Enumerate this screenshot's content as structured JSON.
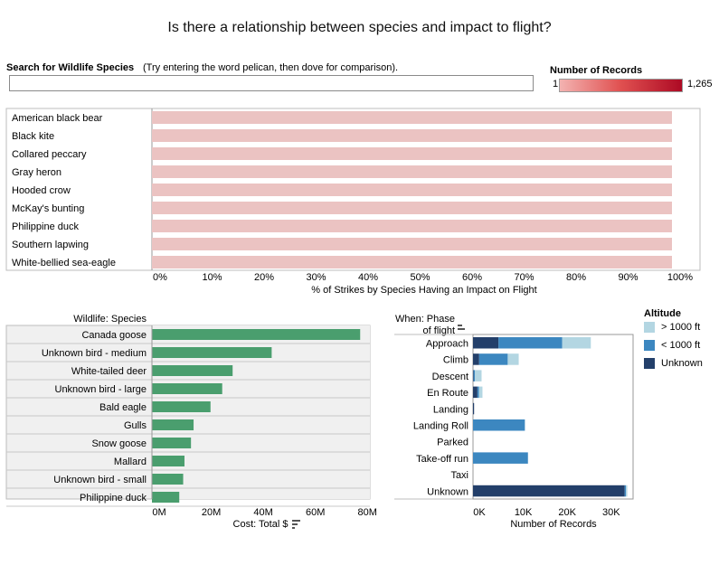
{
  "title": "Is there a relationship between species and impact to flight?",
  "search": {
    "label": "Search for Wildlife Species",
    "hint": "(Try entering the word pelican, then dove for comparison).",
    "value": ""
  },
  "records_legend": {
    "title": "Number of Records",
    "min": "1",
    "max": "1,265",
    "colors": [
      "#f3b3b1",
      "#ad0a24"
    ]
  },
  "chart_data": [
    {
      "type": "bar",
      "orientation": "horizontal",
      "categories": [
        "American black bear",
        "Black kite",
        "Collared peccary",
        "Gray heron",
        "Hooded crow",
        "McKay's bunting",
        "Philippine duck",
        "Southern lapwing",
        "White-bellied sea-eagle"
      ],
      "values": [
        100,
        100,
        100,
        100,
        100,
        100,
        100,
        100,
        100
      ],
      "xlabel": "% of Strikes by Species Having an Impact on Flight",
      "xlim": [
        0,
        100
      ],
      "ticks": [
        "0%",
        "10%",
        "20%",
        "30%",
        "40%",
        "50%",
        "60%",
        "70%",
        "80%",
        "90%",
        "100%"
      ],
      "color": "#ebc3c2"
    },
    {
      "type": "bar",
      "orientation": "horizontal",
      "header": "Wildlife: Species",
      "categories": [
        "Canada goose",
        "Unknown bird - medium",
        "White-tailed deer",
        "Unknown bird - large",
        "Bald eagle",
        "Gulls",
        "Snow goose",
        "Mallard",
        "Unknown bird - small",
        "Philippine duck"
      ],
      "values": [
        80,
        46,
        31,
        27,
        22.5,
        16,
        15,
        12.5,
        12,
        10.5
      ],
      "xlabel": "Cost: Total $",
      "xlim": [
        0,
        82
      ],
      "ticks": [
        {
          "v": 0,
          "label": "0M"
        },
        {
          "v": 20,
          "label": "20M"
        },
        {
          "v": 40,
          "label": "40M"
        },
        {
          "v": 60,
          "label": "60M"
        },
        {
          "v": 80,
          "label": "80M"
        }
      ],
      "color": "#4a9e6e"
    },
    {
      "type": "bar",
      "orientation": "horizontal",
      "stacked": true,
      "header": "When: Phase of flight",
      "header_lines": [
        "When: Phase",
        "of flight"
      ],
      "categories": [
        "Approach",
        "Climb",
        "Descent",
        "En Route",
        "Landing",
        "Landing Roll",
        "Parked",
        "Take-off run",
        "Taxi",
        "Unknown"
      ],
      "series": [
        {
          "name": "Unknown",
          "color": "#233f6a",
          "values": [
            5800,
            1400,
            150,
            1000,
            250,
            0,
            0,
            0,
            0,
            34500
          ]
        },
        {
          "name": "< 1000 ft",
          "color": "#3c87c0",
          "values": [
            14500,
            6500,
            300,
            350,
            0,
            11800,
            0,
            12500,
            0,
            300
          ]
        },
        {
          "name": "> 1000 ft",
          "color": "#b3d6e2",
          "values": [
            6500,
            2500,
            1500,
            800,
            0,
            0,
            0,
            0,
            0,
            300
          ]
        }
      ],
      "xlabel": "Number of Records",
      "xlim": [
        0,
        36000
      ],
      "ticks": [
        {
          "v": 0,
          "label": "0K"
        },
        {
          "v": 10000,
          "label": "10K"
        },
        {
          "v": 20000,
          "label": "20K"
        },
        {
          "v": 30000,
          "label": "30K"
        }
      ]
    }
  ],
  "altitude_legend": {
    "title": "Altitude",
    "items": [
      {
        "label": "> 1000 ft",
        "color": "#b3d6e2"
      },
      {
        "label": "< 1000 ft",
        "color": "#3c87c0"
      },
      {
        "label": "Unknown",
        "color": "#233f6a"
      }
    ]
  }
}
